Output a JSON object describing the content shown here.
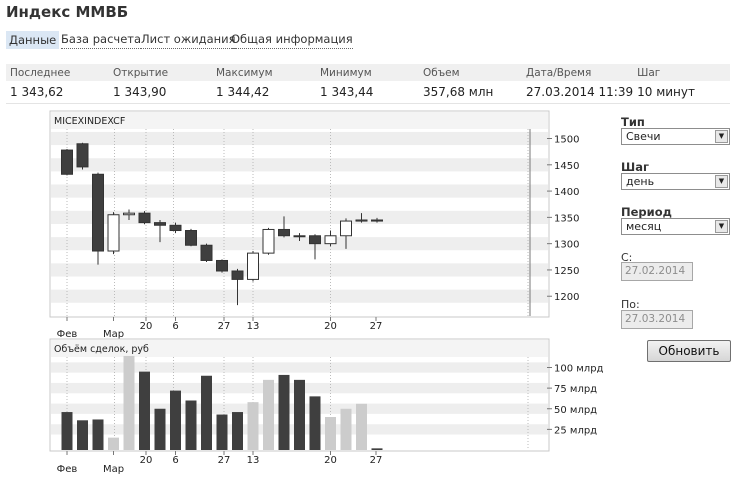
{
  "page": {
    "title": "Индекс ММВБ"
  },
  "tabs": [
    {
      "label": "Данные",
      "active": true
    },
    {
      "label": "База расчета",
      "active": false
    },
    {
      "label": "Лист ожидания",
      "active": false
    },
    {
      "label": "Общая информация",
      "active": false
    }
  ],
  "stats": {
    "headers": [
      "Последнее",
      "Открытие",
      "Максимум",
      "Минимум",
      "Объем",
      "Дата/Время",
      "Шаг"
    ],
    "values": [
      "1 343,62",
      "1 343,90",
      "1 344,42",
      "1 343,44",
      "357,68 млн",
      "27.03.2014 11:39",
      "10 минут"
    ]
  },
  "controls": {
    "type_label": "Тип",
    "type_value": "Свечи",
    "step_label": "Шаг",
    "step_value": "день",
    "period_label": "Период",
    "period_value": "месяц",
    "from_label": "С:",
    "from_value": "27.02.2014",
    "to_label": "По:",
    "to_value": "27.03.2014",
    "refresh_label": "Обновить"
  },
  "colors": {
    "up_fill": "#ffffff",
    "down_fill": "#3f3f3f",
    "vol_up": "#cccccc",
    "vol_down": "#3f3f3f",
    "band": "#eeeeee"
  },
  "chart_data": [
    {
      "type": "candlestick",
      "title": "MICEXINDEXCF",
      "x": [
        "27.02",
        "28.02",
        "03.03",
        "04.03",
        "05.03",
        "06.03",
        "07.03",
        "10.03",
        "11.03",
        "12.03",
        "13.03",
        "14.03",
        "17.03",
        "18.03",
        "19.03",
        "20.03",
        "21.03",
        "24.03",
        "25.03",
        "26.03",
        "27.03"
      ],
      "x_tick_labels": [
        "Фев",
        "20",
        "27",
        "Мар",
        "6",
        "13",
        "20",
        "27"
      ],
      "open": [
        1478,
        1490,
        1432,
        1286,
        1355,
        1358,
        1340,
        1335,
        1325,
        1297,
        1268,
        1248,
        1232,
        1282,
        1327,
        1315,
        1315,
        1300,
        1315,
        1343,
        1345
      ],
      "close": [
        1432,
        1446,
        1286,
        1355,
        1358,
        1340,
        1335,
        1325,
        1297,
        1268,
        1248,
        1232,
        1282,
        1327,
        1315,
        1315,
        1300,
        1315,
        1343,
        1345,
        1343
      ],
      "high": [
        1480,
        1492,
        1435,
        1360,
        1365,
        1362,
        1345,
        1340,
        1328,
        1300,
        1270,
        1252,
        1286,
        1330,
        1352,
        1320,
        1318,
        1325,
        1348,
        1358,
        1349
      ],
      "low": [
        1430,
        1441,
        1260,
        1280,
        1345,
        1337,
        1303,
        1320,
        1295,
        1265,
        1245,
        1183,
        1228,
        1279,
        1312,
        1305,
        1270,
        1295,
        1290,
        1340,
        1340
      ],
      "y_ticks": [
        1200,
        1250,
        1300,
        1350,
        1400,
        1450,
        1500
      ],
      "ylim": [
        1170,
        1520
      ]
    },
    {
      "type": "bar",
      "title": "Объём сделок, руб",
      "values": [
        46,
        36,
        37,
        15,
        114,
        95,
        50,
        72,
        60,
        90,
        43,
        46,
        58,
        85,
        91,
        85,
        65,
        40,
        50,
        56,
        2
      ],
      "y_tick_labels": [
        "100 млрд",
        "75 млрд",
        "50 млрд",
        "25 млрд"
      ],
      "y_ticks": [
        100,
        75,
        50,
        25
      ],
      "ylim": [
        0,
        120
      ]
    }
  ]
}
